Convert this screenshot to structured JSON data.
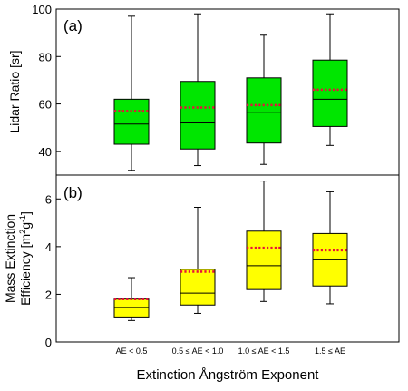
{
  "chart_data": [
    {
      "type": "box",
      "panel_label": "(a)",
      "ylabel": "Lidar Ratio [sr]",
      "ylim": [
        30,
        100
      ],
      "yticks": [
        40,
        60,
        80,
        100
      ],
      "categories": [
        "AE < 0.5",
        "0.5 ≤ AE < 1.0",
        "1.0 ≤ AE < 1.5",
        "1.5 ≤ AE"
      ],
      "box_color": "#00e600",
      "mean_color": "#e8103a",
      "boxes": [
        {
          "whisker_low": 32,
          "q1": 43,
          "median": 51.5,
          "q3": 62,
          "whisker_high": 97,
          "mean": 57
        },
        {
          "whisker_low": 34,
          "q1": 41,
          "median": 52,
          "q3": 69.5,
          "whisker_high": 98,
          "mean": 58.5
        },
        {
          "whisker_low": 34.5,
          "q1": 43.5,
          "median": 56.5,
          "q3": 71,
          "whisker_high": 89,
          "mean": 59.5
        },
        {
          "whisker_low": 42.5,
          "q1": 50.5,
          "median": 62,
          "q3": 78.5,
          "whisker_high": 98,
          "mean": 66
        }
      ]
    },
    {
      "type": "box",
      "panel_label": "(b)",
      "ylabel_line1": "Mass Extinction",
      "ylabel_line2": "Efficiency [m",
      "ylabel_sup1": "2",
      "ylabel_mid": "g",
      "ylabel_sup2": "-1",
      "ylabel_end": "]",
      "ylim": [
        0,
        7
      ],
      "yticks": [
        0,
        2,
        4,
        6
      ],
      "categories": [
        "AE < 0.5",
        "0.5 ≤ AE < 1.0",
        "1.0 ≤ AE < 1.5",
        "1.5 ≤ AE"
      ],
      "box_color": "#ffff00",
      "mean_color": "#e8103a",
      "boxes": [
        {
          "whisker_low": 0.9,
          "q1": 1.05,
          "median": 1.45,
          "q3": 1.8,
          "whisker_high": 2.7,
          "mean": 1.8
        },
        {
          "whisker_low": 1.2,
          "q1": 1.55,
          "median": 2.05,
          "q3": 3.05,
          "whisker_high": 5.65,
          "mean": 2.95
        },
        {
          "whisker_low": 1.7,
          "q1": 2.2,
          "median": 3.2,
          "q3": 4.65,
          "whisker_high": 6.75,
          "mean": 3.95
        },
        {
          "whisker_low": 1.6,
          "q1": 2.35,
          "median": 3.45,
          "q3": 4.55,
          "whisker_high": 6.3,
          "mean": 3.85
        }
      ]
    }
  ],
  "xlabel": "Extinction Ångström Exponent"
}
